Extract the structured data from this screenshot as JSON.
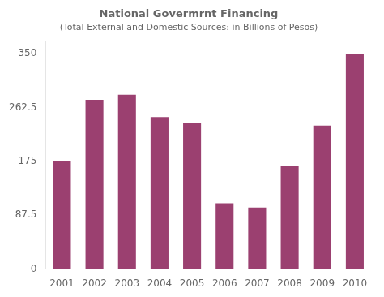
{
  "chart_data": {
    "type": "bar",
    "title": "National Govermrnt Financing",
    "subtitle": "(Total External and Domestic Sources: in Billions of Pesos)",
    "categories": [
      "2001",
      "2002",
      "2003",
      "2004",
      "2005",
      "2006",
      "2007",
      "2008",
      "2009",
      "2010"
    ],
    "values": [
      175,
      275,
      283,
      247,
      237,
      107,
      100,
      168,
      233,
      350
    ],
    "color": "#9b4070",
    "ylim": [
      0,
      370
    ],
    "yticks": [
      0,
      87.5,
      175,
      262.5,
      350
    ],
    "grid": false
  }
}
